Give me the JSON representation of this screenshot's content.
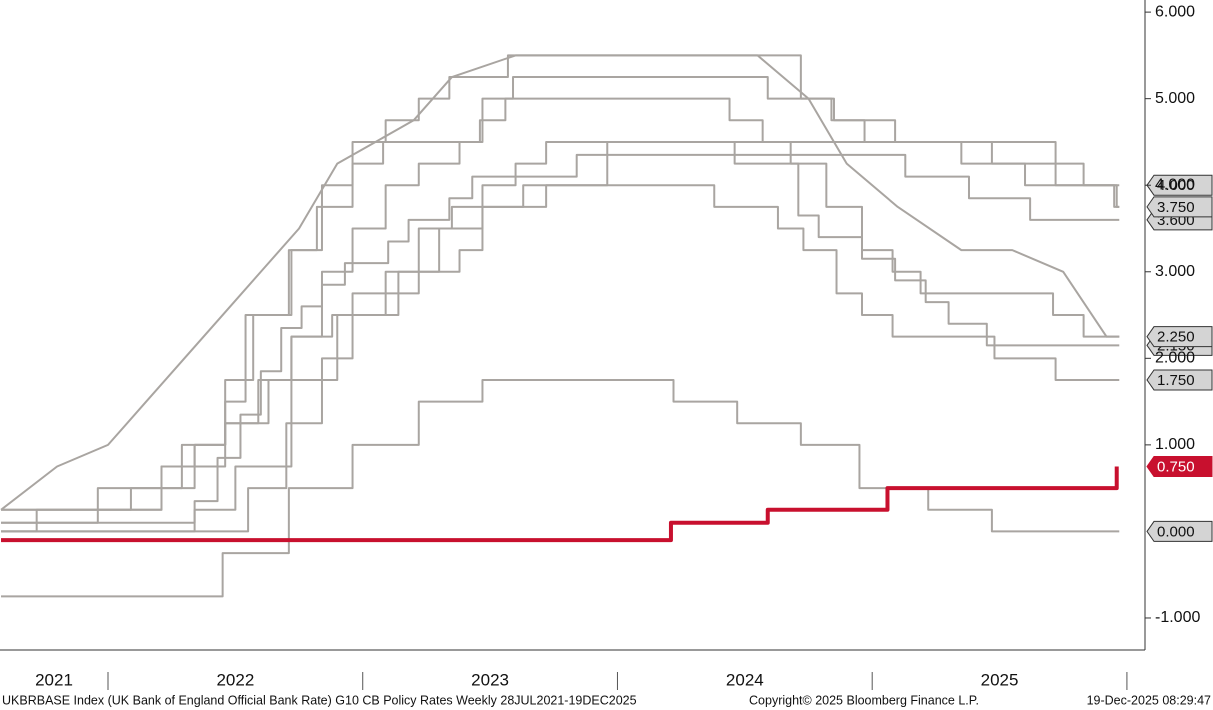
{
  "chart_data": {
    "type": "line",
    "step": true,
    "xlim": [
      2021.576,
      2026.071
    ],
    "xticks": [
      2022,
      2023,
      2024,
      2025,
      2026
    ],
    "xlabels": [
      {
        "value": 2021,
        "label": "2021"
      },
      {
        "value": 2022,
        "label": "2022"
      },
      {
        "value": 2023,
        "label": "2023"
      },
      {
        "value": 2024,
        "label": "2024"
      },
      {
        "value": 2025,
        "label": "2025"
      }
    ],
    "ylim": [
      -1.37,
      6.14
    ],
    "yticks": [
      {
        "value": 6,
        "label": "6.000"
      },
      {
        "value": 5,
        "label": "5.000"
      },
      {
        "value": 4,
        "label": "4.000"
      },
      {
        "value": 3,
        "label": "3.000"
      },
      {
        "value": 2,
        "label": "2.000"
      },
      {
        "value": 1,
        "label": "1.000"
      },
      {
        "value": -1,
        "label": "-1.000"
      }
    ],
    "footer_left": "UKBRBASE Index (UK Bank of England Official Bank Rate) G10 CB Policy Rates Weekly 28JUL2021-19DEC2025",
    "footer_center": "Copyright© 2025 Bloomberg Finance L.P.",
    "footer_right": "19-Dec-2025 08:29:47",
    "series": [
      {
        "color": "#a9a5a1",
        "step": true,
        "x": [
          2021.58,
          2022.34,
          2022.43,
          2022.52,
          2022.6,
          2022.68,
          2022.76,
          2022.84,
          2022.93,
          2023.1,
          2023.18,
          2023.34,
          2023.43,
          2023.84,
          2025.13,
          2025.38,
          2025.62,
          2025.97
        ],
        "values": [
          0.1,
          0.35,
          0.85,
          1.35,
          1.85,
          2.35,
          2.6,
          2.85,
          3.1,
          3.35,
          3.6,
          3.85,
          4.1,
          4.35,
          4.1,
          3.85,
          3.6,
          3.6
        ],
        "value_labels": [
          null,
          null,
          null,
          null,
          null,
          null,
          null,
          null,
          null,
          null,
          null,
          null,
          null,
          null,
          null,
          null,
          null,
          "3.600"
        ]
      },
      {
        "color": "#a9a5a1",
        "step": true,
        "x": [
          2021.58,
          2022.21,
          2022.34,
          2022.46,
          2022.57,
          2022.72,
          2022.84,
          2022.96,
          2023.09,
          2023.22,
          2023.34,
          2023.57,
          2024.72,
          2024.85,
          2024.97,
          2025.72,
          2025.83,
          2025.95,
          2025.97
        ],
        "values": [
          0.25,
          0.5,
          1.0,
          1.75,
          2.5,
          3.25,
          4.0,
          4.5,
          4.75,
          5.0,
          5.25,
          5.5,
          5.0,
          4.75,
          4.5,
          4.25,
          4.0,
          3.75,
          3.75
        ],
        "value_labels": [
          null,
          null,
          null,
          null,
          null,
          null,
          null,
          null,
          null,
          null,
          null,
          null,
          null,
          null,
          null,
          null,
          null,
          null,
          "3.750"
        ]
      },
      {
        "color": "#a9a5a1",
        "step": true,
        "x": [
          2021.58,
          2021.72,
          2021.96,
          2022.21,
          2022.46,
          2022.63,
          2022.72,
          2022.88,
          2022.96,
          2023.22,
          2023.38,
          2023.47,
          2023.63,
          2023.96,
          2025.47,
          2025.72,
          2025.97
        ],
        "values": [
          0,
          0.25,
          0.5,
          0.75,
          1.25,
          1.75,
          2.25,
          2.5,
          2.75,
          3.0,
          3.25,
          3.75,
          4.0,
          4.5,
          4.25,
          4.0,
          4.0
        ],
        "value_labels": [
          null,
          null,
          null,
          null,
          null,
          null,
          null,
          null,
          null,
          null,
          null,
          null,
          null,
          null,
          null,
          null,
          "4.000"
        ]
      },
      {
        "color": "#a9a5a1",
        "step": true,
        "x": [
          2021.58,
          2021.96,
          2022.09,
          2022.21,
          2022.34,
          2022.46,
          2022.59,
          2022.72,
          2022.84,
          2022.96,
          2023.09,
          2023.22,
          2023.38,
          2023.47,
          2023.59,
          2024.59,
          2024.84,
          2025.09,
          2025.35,
          2025.6,
          2025.96,
          2025.97
        ],
        "values": [
          0.1,
          0.25,
          0.5,
          0.75,
          1.0,
          1.25,
          1.75,
          2.25,
          3.0,
          3.5,
          4.0,
          4.25,
          4.5,
          5.0,
          5.25,
          5.0,
          4.75,
          4.5,
          4.25,
          4.0,
          3.75,
          3.75
        ]
      },
      {
        "color": "#a9a5a1",
        "step": true,
        "x": [
          2021.58,
          2022.55,
          2022.7,
          2022.84,
          2022.96,
          2023.09,
          2023.22,
          2023.35,
          2023.47,
          2023.6,
          2023.72,
          2024.46,
          2024.71,
          2024.79,
          2024.96,
          2025.09,
          2025.21,
          2025.3,
          2025.45,
          2025.97
        ],
        "values": [
          0,
          0.5,
          1.25,
          2.0,
          2.5,
          3.0,
          3.5,
          3.75,
          4.0,
          4.25,
          4.5,
          4.25,
          3.65,
          3.4,
          3.15,
          2.9,
          2.65,
          2.4,
          2.15,
          2.15
        ],
        "value_labels": [
          null,
          null,
          null,
          null,
          null,
          null,
          null,
          null,
          null,
          null,
          null,
          null,
          null,
          null,
          null,
          null,
          null,
          null,
          null,
          "2.150"
        ]
      },
      {
        "color": "#a9a5a1",
        "step": true,
        "x": [
          2021.58,
          2022.21,
          2022.29,
          2022.46,
          2022.54,
          2022.71,
          2022.82,
          2022.96,
          2023.08,
          2023.46,
          2023.56,
          2024.44,
          2024.57,
          2024.68,
          2024.82,
          2024.96,
          2025.08,
          2025.19,
          2025.71,
          2025.83,
          2025.97
        ],
        "values": [
          0.25,
          0.5,
          1.0,
          1.5,
          2.5,
          3.25,
          3.75,
          4.25,
          4.5,
          4.75,
          5.0,
          4.75,
          4.5,
          4.25,
          3.75,
          3.25,
          3.0,
          2.75,
          2.5,
          2.25,
          2.25
        ],
        "value_labels": [
          null,
          null,
          null,
          null,
          null,
          null,
          null,
          null,
          null,
          null,
          null,
          null,
          null,
          null,
          null,
          null,
          null,
          null,
          null,
          null,
          "2.250"
        ]
      },
      {
        "color": "#a9a5a1",
        "step": false,
        "x": [
          2021.58,
          2021.8,
          2022.0,
          2022.15,
          2022.3,
          2022.45,
          2022.6,
          2022.75,
          2022.9,
          2023.05,
          2023.2,
          2023.35,
          2023.6,
          2024.55,
          2024.75,
          2024.9,
          2025.1,
          2025.35,
          2025.55,
          2025.75,
          2025.92,
          2025.97
        ],
        "values": [
          0.25,
          0.75,
          1.0,
          1.5,
          2.0,
          2.5,
          3.0,
          3.5,
          4.25,
          4.5,
          4.75,
          5.25,
          5.5,
          5.5,
          5.0,
          4.25,
          3.75,
          3.25,
          3.25,
          3.0,
          2.25,
          2.25
        ]
      },
      {
        "color": "#a9a5a1",
        "step": true,
        "x": [
          2021.58,
          2022.34,
          2022.5,
          2022.72,
          2022.9,
          2023.14,
          2023.3,
          2023.47,
          2023.72,
          2024.38,
          2024.63,
          2024.73,
          2024.86,
          2024.96,
          2025.08,
          2025.48,
          2025.72,
          2025.97
        ],
        "values": [
          0,
          0.25,
          0.75,
          1.75,
          2.5,
          3.0,
          3.5,
          3.75,
          4.0,
          3.75,
          3.5,
          3.25,
          2.75,
          2.5,
          2.25,
          2.0,
          1.75,
          1.75
        ],
        "value_labels": [
          null,
          null,
          null,
          null,
          null,
          null,
          null,
          null,
          null,
          null,
          null,
          null,
          null,
          null,
          null,
          null,
          null,
          "1.750"
        ]
      },
      {
        "color": "#a9a5a1",
        "step": true,
        "x": [
          2021.58,
          2022.45,
          2022.71,
          2022.96,
          2023.22,
          2023.47,
          2024.22,
          2024.47,
          2024.72,
          2024.95,
          2025.22,
          2025.47,
          2025.97
        ],
        "values": [
          -0.75,
          -0.25,
          0.5,
          1.0,
          1.5,
          1.75,
          1.5,
          1.25,
          1.0,
          0.5,
          0.25,
          0,
          0
        ],
        "value_labels": [
          null,
          null,
          null,
          null,
          null,
          null,
          null,
          null,
          null,
          null,
          null,
          null,
          "0.000"
        ]
      },
      {
        "color": "#c8102e",
        "step": true,
        "highlight": true,
        "x": [
          2021.58,
          2024.21,
          2024.59,
          2025.06,
          2025.96
        ],
        "values": [
          -0.1,
          0.1,
          0.25,
          0.5,
          0.75
        ],
        "value_labels": [
          null,
          null,
          null,
          null,
          "0.750"
        ]
      }
    ]
  }
}
